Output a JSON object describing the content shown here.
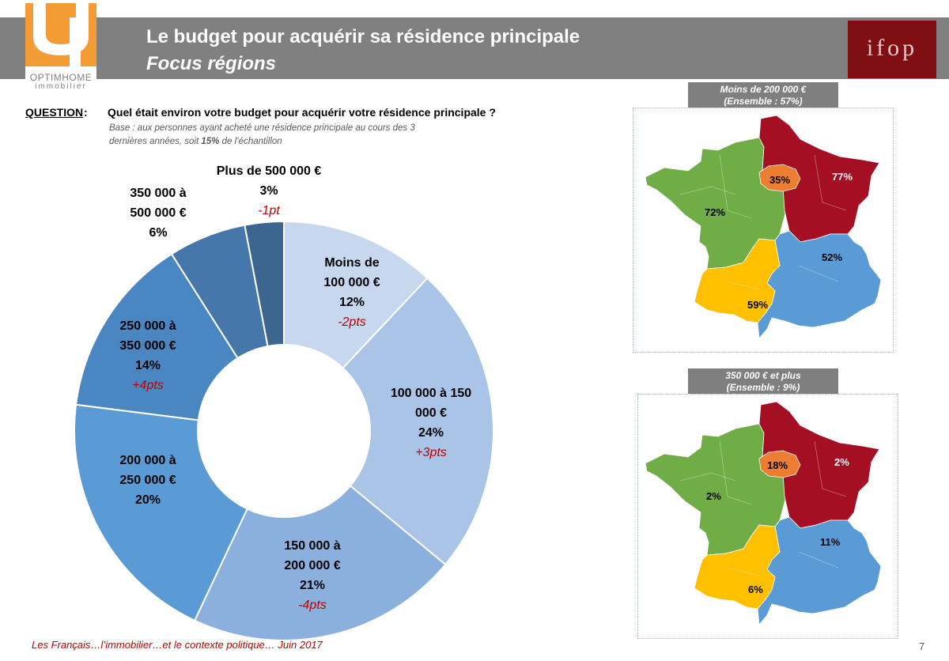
{
  "header": {
    "title": "Le budget pour acquérir sa résidence principale",
    "subtitle": "Focus régions",
    "logo_left_line1": "OPTIMHOME",
    "logo_left_line2": "immobilier",
    "logo_right": "ifop"
  },
  "question": {
    "label": "QUESTION",
    "colon": ":",
    "text": "Quel était environ votre budget pour acquérir votre résidence principale ?",
    "base_prefix": "Base : aux personnes ayant acheté une résidence principale au cours des 3 dernières années, soit ",
    "base_bold": "15%",
    "base_suffix": " de l’échantillon"
  },
  "chart_data": {
    "type": "pie",
    "donut": true,
    "categories": [
      "Moins de 100 000 €",
      "100 000 à 150 000 €",
      "150 000 à 200 000 €",
      "200 000 à 250 000 €",
      "250 000 à 350 000 €",
      "350 000 à 500 000 €",
      "Plus de 500 000 €"
    ],
    "values": [
      12,
      24,
      21,
      20,
      14,
      6,
      3
    ],
    "value_labels": [
      "12%",
      "24%",
      "21%",
      "20%",
      "14%",
      "6%",
      "3%"
    ],
    "deltas": [
      "-2pts",
      "+3pts",
      "-4pts",
      "",
      "+4pts",
      "",
      "-1pt"
    ],
    "colors": [
      "#c6d7ee",
      "#a9c4e6",
      "#8cb0de",
      "#5b9bd5",
      "#4a86c2",
      "#4577ab",
      "#3c6690"
    ],
    "label_lines": [
      [
        "Moins de",
        "100 000 €"
      ],
      [
        "100 000 à 150",
        "000 €"
      ],
      [
        "150 000 à",
        "200 000 €"
      ],
      [
        "200 000 à",
        "250 000 €"
      ],
      [
        "250 000 à",
        "350 000 €"
      ],
      [
        "350 000 à",
        "500 000 €"
      ],
      [
        "Plus de 500 000 €"
      ]
    ]
  },
  "maps": {
    "top": {
      "title": "Moins de 200 000 €",
      "ensemble": "(Ensemble : 57%)",
      "regions": {
        "north_east": "77%",
        "paris": "35%",
        "west": "72%",
        "south_east": "52%",
        "south_west": "59%"
      }
    },
    "bottom": {
      "title": "350 000 € et plus",
      "ensemble": "(Ensemble : 9%)",
      "regions": {
        "north_east": "2%",
        "paris": "18%",
        "west": "2%",
        "south_east": "11%",
        "south_west": "6%"
      }
    },
    "colors": {
      "north_east": "#a50f24",
      "paris": "#ed7d31",
      "west": "#70ad47",
      "south_east": "#5b9bd5",
      "south_west": "#ffc000"
    }
  },
  "footer": {
    "text": "Les Français…l’immobilier…et le contexte politique… Juin 2017",
    "page": "7"
  }
}
